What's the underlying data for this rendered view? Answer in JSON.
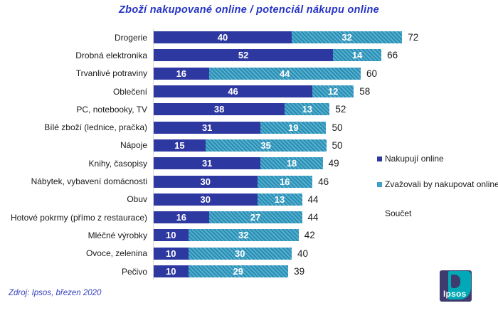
{
  "title": "Zboží nakupované online / potenciál nákupu online",
  "source": "Zdroj: Ipsos, březen 2020",
  "legend": {
    "items": [
      {
        "label": "Nakupují online",
        "swatch_color": "#2e38a1"
      },
      {
        "label": "Zvažovali by nakupovat online",
        "swatch_color": "#3f9fc6"
      },
      {
        "label": "Součet",
        "swatch_color": ""
      }
    ]
  },
  "logo": {
    "text": "Ipsos",
    "purple": "#3e3b6e",
    "teal": "#00a9b5"
  },
  "chart_data": {
    "type": "bar",
    "orientation": "horizontal",
    "stacked": true,
    "grid": false,
    "legend_position": "right",
    "xlim": [
      0,
      100
    ],
    "categories": [
      "Drogerie",
      "Drobná elektronika",
      "Trvanlivé potraviny",
      "Oblečení",
      "PC, notebooky, TV",
      "Bílé zboží (lednice, pračka)",
      "Nápoje",
      "Knihy, časopisy",
      "Nábytek, vybavení domácnosti",
      "Obuv",
      "Hotové pokrmy (přímo z restaurace)",
      "Mléčné výrobky",
      "Ovoce, zelenina",
      "Pečivo"
    ],
    "series": [
      {
        "name": "Nakupují online",
        "color": "#2e38a1",
        "values": [
          40,
          52,
          16,
          46,
          38,
          31,
          15,
          31,
          30,
          30,
          16,
          10,
          10,
          10
        ]
      },
      {
        "name": "Zvažovali by nakupovat online",
        "color": "#2e8fb5",
        "stripe_color": "#5cb6d4",
        "hatch": "diagonal",
        "values": [
          32,
          14,
          44,
          12,
          13,
          19,
          35,
          18,
          16,
          13,
          27,
          32,
          30,
          29
        ]
      }
    ],
    "totals": [
      72,
      66,
      60,
      58,
      52,
      50,
      50,
      49,
      46,
      44,
      44,
      42,
      40,
      39
    ],
    "totals_label": "Součet"
  }
}
